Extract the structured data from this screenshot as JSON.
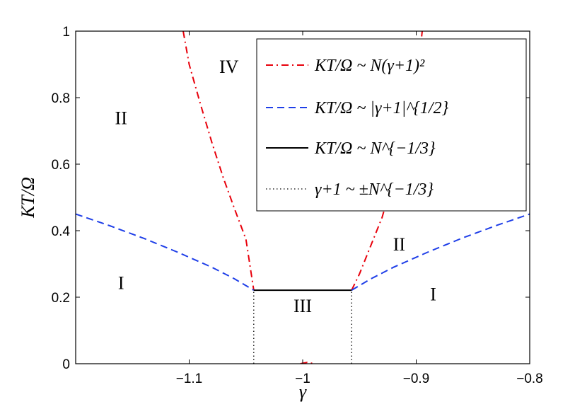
{
  "chart_data": {
    "type": "line",
    "xlabel": "γ",
    "ylabel": "KT/Ω",
    "xlim": [
      -1.2,
      -0.8
    ],
    "ylim": [
      0,
      1
    ],
    "x_ticks": [
      -1.1,
      -1,
      -0.9,
      -0.8
    ],
    "x_tick_labels": [
      "−1.1",
      "−1",
      "−0.9",
      "−0.8"
    ],
    "y_ticks": [
      0,
      0.2,
      0.4,
      0.6,
      0.8,
      1
    ],
    "y_tick_labels": [
      "0",
      "0.2",
      "0.4",
      "0.6",
      "0.8",
      "1"
    ],
    "grid": false,
    "legend_position": "top-right",
    "series": [
      {
        "name": "KT/Ω ~ N(γ+1)²",
        "style": "dash-dot",
        "color": "#e8000b",
        "segments": [
          [
            [
              -1.1053,
              1.0
            ],
            [
              -1.1,
              0.9
            ],
            [
              -1.09,
              0.78
            ],
            [
              -1.08,
              0.665
            ],
            [
              -1.07,
              0.56
            ],
            [
              -1.06,
              0.465
            ],
            [
              -1.05,
              0.375
            ],
            [
              -1.0431,
              0.221
            ]
          ],
          [
            [
              -0.9569,
              0.221
            ],
            [
              -0.95,
              0.27
            ],
            [
              -0.94,
              0.355
            ],
            [
              -0.93,
              0.44
            ],
            [
              -0.92,
              0.56
            ],
            [
              -0.91,
              0.69
            ],
            [
              -0.9,
              0.83
            ],
            [
              -0.8947,
              1.0
            ]
          ],
          [
            [
              -1.002,
              0.0
            ],
            [
              -0.996,
              0.004
            ],
            [
              -0.99,
              0.0
            ]
          ]
        ]
      },
      {
        "name": "KT/Ω ~ |γ+1|^{1/2}",
        "style": "dashed",
        "color": "#1f3fe8",
        "segments": [
          [
            [
              -1.2,
              0.45
            ],
            [
              -1.17,
              0.415
            ],
            [
              -1.14,
              0.377
            ],
            [
              -1.11,
              0.335
            ],
            [
              -1.08,
              0.29
            ],
            [
              -1.06,
              0.255
            ],
            [
              -1.0431,
              0.221
            ]
          ],
          [
            [
              -0.9569,
              0.221
            ],
            [
              -0.94,
              0.255
            ],
            [
              -0.92,
              0.29
            ],
            [
              -0.89,
              0.335
            ],
            [
              -0.86,
              0.377
            ],
            [
              -0.83,
              0.415
            ],
            [
              -0.8,
              0.45
            ]
          ]
        ]
      },
      {
        "name": "KT/Ω ~ N^{−1/3}",
        "style": "solid",
        "color": "#000000",
        "segments": [
          [
            [
              -1.0431,
              0.221
            ],
            [
              -0.9569,
              0.221
            ]
          ]
        ]
      },
      {
        "name": "γ+1 ~ ±N^{−1/3}",
        "style": "dotted",
        "color": "#000000",
        "segments": [
          [
            [
              -1.0431,
              0.0
            ],
            [
              -1.0431,
              0.221
            ]
          ],
          [
            [
              -0.9569,
              0.0
            ],
            [
              -0.9569,
              0.221
            ]
          ]
        ]
      }
    ],
    "regions": [
      {
        "label": "IV",
        "x": -1.065,
        "y": 0.875
      },
      {
        "label": "II",
        "x": -1.16,
        "y": 0.72
      },
      {
        "label": "I",
        "x": -1.16,
        "y": 0.225
      },
      {
        "label": "III",
        "x": -1.0,
        "y": 0.155
      },
      {
        "label": "II",
        "x": -0.915,
        "y": 0.34
      },
      {
        "label": "I",
        "x": -0.885,
        "y": 0.19
      }
    ]
  }
}
